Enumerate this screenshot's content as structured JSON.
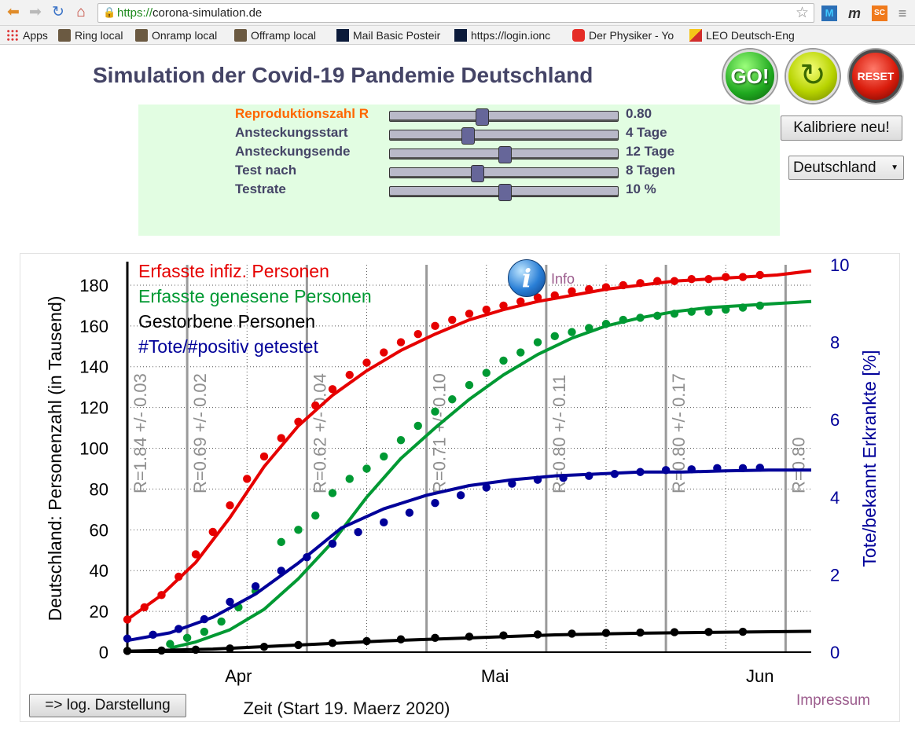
{
  "browser": {
    "url_scheme": "https://",
    "url_host": "corona-simulation.de",
    "extensions": {
      "ext1": "M",
      "ext2": "m",
      "ext3": "SC",
      "menu": "≡"
    },
    "bookmarks": [
      "Apps",
      "Ring local",
      "Onramp local",
      "Offramp local",
      "Mail Basic Posteir",
      "https://login.ionc",
      "Der Physiker - Yo",
      "LEO Deutsch-Eng"
    ]
  },
  "page": {
    "title": "Simulation der Covid-19 Pandemie Deutschland",
    "go_label": "GO!",
    "reset_label": "RESET",
    "recalibrate_label": "Kalibriere neu!",
    "country": "Deutschland",
    "log_button": "=> log. Darstellung",
    "impressum": "Impressum",
    "info": "Info"
  },
  "controls": [
    {
      "label": "Reproduktionszahl R",
      "value": "0.80",
      "position": 0.4,
      "active": true
    },
    {
      "label": "Ansteckungsstart",
      "value": "4 Tage",
      "position": 0.34,
      "active": false
    },
    {
      "label": "Ansteckungsende",
      "value": "12 Tage",
      "position": 0.5,
      "active": false
    },
    {
      "label": "Test nach",
      "value": "8 Tagen",
      "position": 0.38,
      "active": false
    },
    {
      "label": "Testrate",
      "value": "10 %",
      "position": 0.5,
      "active": false
    }
  ],
  "chart_data": {
    "type": "line",
    "xlabel": "Zeit (Start 19. Maerz 2020)",
    "ylabel": "Deutschland: Personenzahl (in Tausend)",
    "y2label": "Tote/bekannt Erkrankte [%]",
    "x_unit": "days since start",
    "xlim": [
      0,
      80
    ],
    "ylim": [
      0,
      190
    ],
    "y2lim": [
      0,
      10
    ],
    "yticks": [
      0,
      20,
      40,
      60,
      80,
      100,
      120,
      140,
      160,
      180
    ],
    "y2ticks": [
      0,
      2,
      4,
      6,
      8,
      10
    ],
    "xticks": [
      {
        "label": "Apr",
        "x": 13
      },
      {
        "label": "Mai",
        "x": 43
      },
      {
        "label": "Jun",
        "x": 74
      }
    ],
    "grid": true,
    "legend_position": "top-left",
    "regime_lines": [
      {
        "x": 0,
        "label": "R=1.84 +/- 0.03"
      },
      {
        "x": 7,
        "label": "R=0.69 +/- 0.02"
      },
      {
        "x": 21,
        "label": "R=0.62 +/- 0.04"
      },
      {
        "x": 35,
        "label": "R=0.71 +/- 0.10"
      },
      {
        "x": 49,
        "label": "R=0.80 +/- 0.11"
      },
      {
        "x": 63,
        "label": "R=0.80 +/- 0.17"
      },
      {
        "x": 77,
        "label": "R=0.80"
      }
    ],
    "series": [
      {
        "name": "Erfasste infiz. Personen",
        "color": "#e60000",
        "axis": "left",
        "model": {
          "x": [
            0,
            4,
            8,
            12,
            16,
            20,
            24,
            28,
            32,
            36,
            40,
            44,
            48,
            52,
            56,
            60,
            64,
            68,
            72,
            76,
            80
          ],
          "y": [
            16,
            28,
            44,
            66,
            91,
            111,
            126,
            138,
            148,
            156,
            163,
            168,
            172,
            175,
            178,
            180,
            182,
            183,
            184,
            185,
            187
          ]
        },
        "observed": {
          "x": [
            0,
            2,
            4,
            6,
            8,
            10,
            12,
            14,
            16,
            18,
            20,
            22,
            24,
            26,
            28,
            30,
            32,
            34,
            36,
            38,
            40,
            42,
            44,
            46,
            48,
            50,
            52,
            54,
            56,
            58,
            60,
            62,
            64,
            66,
            68,
            70,
            72,
            74
          ],
          "y": [
            16,
            22,
            28,
            37,
            48,
            59,
            72,
            85,
            96,
            105,
            113,
            121,
            129,
            136,
            142,
            147,
            152,
            156,
            160,
            163,
            166,
            168,
            170,
            172,
            174,
            175,
            177,
            178,
            179,
            180,
            181,
            182,
            182,
            183,
            183,
            184,
            184,
            185
          ]
        }
      },
      {
        "name": "Erfasste genesene Personen",
        "color": "#009933",
        "axis": "left",
        "model": {
          "x": [
            5,
            8,
            12,
            16,
            20,
            24,
            28,
            32,
            36,
            40,
            44,
            48,
            52,
            56,
            60,
            64,
            68,
            72,
            76,
            80
          ],
          "y": [
            2,
            5,
            11,
            21,
            36,
            54,
            76,
            95,
            110,
            124,
            136,
            146,
            154,
            160,
            164,
            167,
            169,
            170,
            171,
            172
          ]
        },
        "observed": {
          "x": [
            5,
            7,
            9,
            11,
            13,
            15,
            18,
            20,
            22,
            24,
            26,
            28,
            30,
            32,
            34,
            36,
            38,
            40,
            42,
            44,
            46,
            48,
            50,
            52,
            54,
            56,
            58,
            60,
            62,
            64,
            66,
            68,
            70,
            72,
            74
          ],
          "y": [
            4,
            7,
            10,
            15,
            22,
            30,
            54,
            60,
            67,
            78,
            85,
            90,
            96,
            104,
            111,
            118,
            124,
            131,
            137,
            143,
            147,
            152,
            155,
            157,
            159,
            161,
            163,
            164,
            165,
            166,
            167,
            167,
            168,
            169,
            170
          ]
        }
      },
      {
        "name": "Gestorbene Personen",
        "color": "#000000",
        "axis": "left",
        "model": {
          "x": [
            0,
            10,
            20,
            30,
            40,
            50,
            60,
            70,
            80
          ],
          "y": [
            0.5,
            1.5,
            3.5,
            5.5,
            7,
            8.5,
            9.3,
            9.8,
            10.2
          ]
        },
        "observed": {
          "x": [
            0,
            4,
            8,
            12,
            16,
            20,
            24,
            28,
            32,
            36,
            40,
            44,
            48,
            52,
            56,
            60,
            64,
            68,
            72
          ],
          "y": [
            0.6,
            0.8,
            1.2,
            1.8,
            2.6,
            3.5,
            4.5,
            5.4,
            6.3,
            7,
            7.6,
            8.2,
            8.7,
            9.1,
            9.4,
            9.6,
            9.8,
            9.9,
            10
          ]
        }
      },
      {
        "name": "#Tote/#positiv getestet",
        "color": "#000099",
        "axis": "right",
        "model": {
          "x": [
            0,
            5,
            10,
            15,
            20,
            25,
            30,
            35,
            40,
            45,
            50,
            55,
            60,
            65,
            70,
            75,
            80
          ],
          "y": [
            0.3,
            0.5,
            0.9,
            1.5,
            2.3,
            3.2,
            3.7,
            4.05,
            4.3,
            4.45,
            4.55,
            4.6,
            4.65,
            4.65,
            4.68,
            4.7,
            4.7
          ]
        },
        "observed": {
          "x": [
            0,
            3,
            6,
            9,
            12,
            15,
            18,
            21,
            24,
            27,
            30,
            33,
            36,
            39,
            42,
            45,
            48,
            51,
            54,
            57,
            60,
            63,
            66,
            69,
            72,
            74
          ],
          "y": [
            0.35,
            0.45,
            0.6,
            0.85,
            1.3,
            1.7,
            2.1,
            2.45,
            2.8,
            3.1,
            3.35,
            3.6,
            3.85,
            4.05,
            4.25,
            4.35,
            4.45,
            4.5,
            4.55,
            4.6,
            4.65,
            4.7,
            4.72,
            4.75,
            4.75,
            4.76
          ]
        }
      }
    ]
  }
}
